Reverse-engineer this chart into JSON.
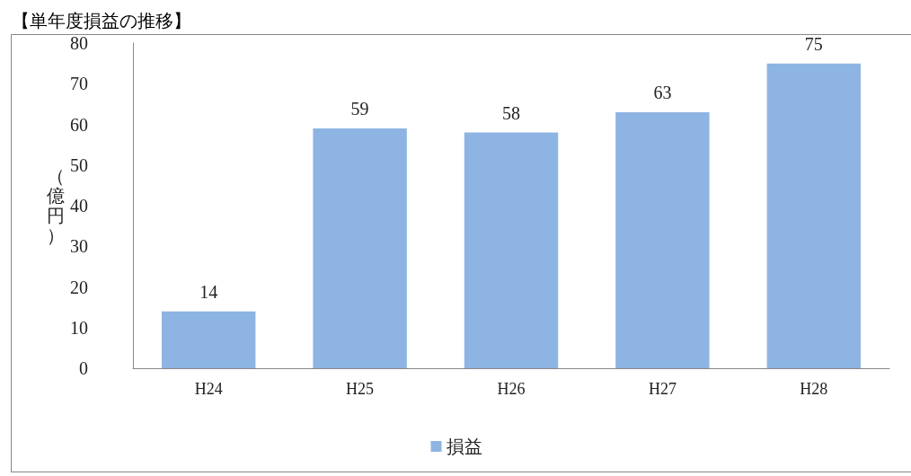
{
  "chart_data": {
    "type": "bar",
    "title": "【単年度損益の推移】",
    "ylabel": "（億円）",
    "categories": [
      "H24",
      "H25",
      "H26",
      "H27",
      "H28"
    ],
    "series": [
      {
        "name": "損益",
        "color": "#8eb4e3",
        "values": [
          14,
          59,
          58,
          63,
          75
        ]
      }
    ],
    "ylim": [
      0,
      80
    ],
    "yticks": [
      0,
      10,
      20,
      30,
      40,
      50,
      60,
      70,
      80
    ],
    "grid": false,
    "legend": "bottom",
    "data_labels": true
  }
}
